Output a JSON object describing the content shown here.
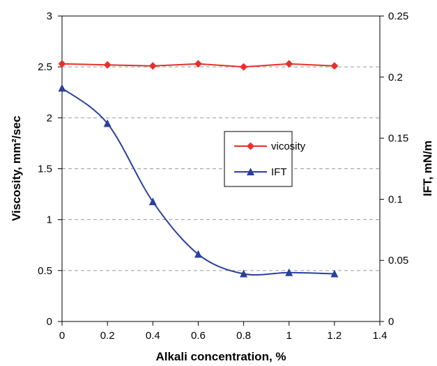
{
  "chart_data": {
    "type": "line",
    "xlabel": "Alkali concentration, %",
    "ylabel_left": "Viscosity, mm²/sec",
    "ylabel_right": "IFT, mN/m",
    "xlim": [
      0,
      1.4
    ],
    "ylim_left": [
      0,
      3
    ],
    "ylim_right": [
      0,
      0.25
    ],
    "x_ticks": [
      "0",
      "0.2",
      "0.4",
      "0.6",
      "0.8",
      "1",
      "1.2",
      "1.4"
    ],
    "y_left_ticks": [
      "0",
      "0.5",
      "1",
      "1.5",
      "2",
      "2.5",
      "3"
    ],
    "y_right_ticks": [
      "0",
      "0.05",
      "0.1",
      "0.15",
      "0.2",
      "0.25"
    ],
    "grid": "horizontal dashed",
    "legend_position": "center-right",
    "series": [
      {
        "name": "vicosity",
        "axis": "left",
        "color": "#e8302a",
        "marker": "diamond",
        "smooth": false,
        "x": [
          0,
          0.2,
          0.4,
          0.6,
          0.8,
          1.0,
          1.2
        ],
        "values": [
          2.53,
          2.52,
          2.51,
          2.53,
          2.5,
          2.53,
          2.51
        ]
      },
      {
        "name": "IFT",
        "axis": "right",
        "color": "#2b3f9e",
        "marker": "triangle",
        "smooth": true,
        "x": [
          0,
          0.2,
          0.4,
          0.6,
          0.8,
          1.0,
          1.2
        ],
        "values": [
          0.191,
          0.162,
          0.098,
          0.055,
          0.039,
          0.04,
          0.039
        ]
      }
    ]
  }
}
